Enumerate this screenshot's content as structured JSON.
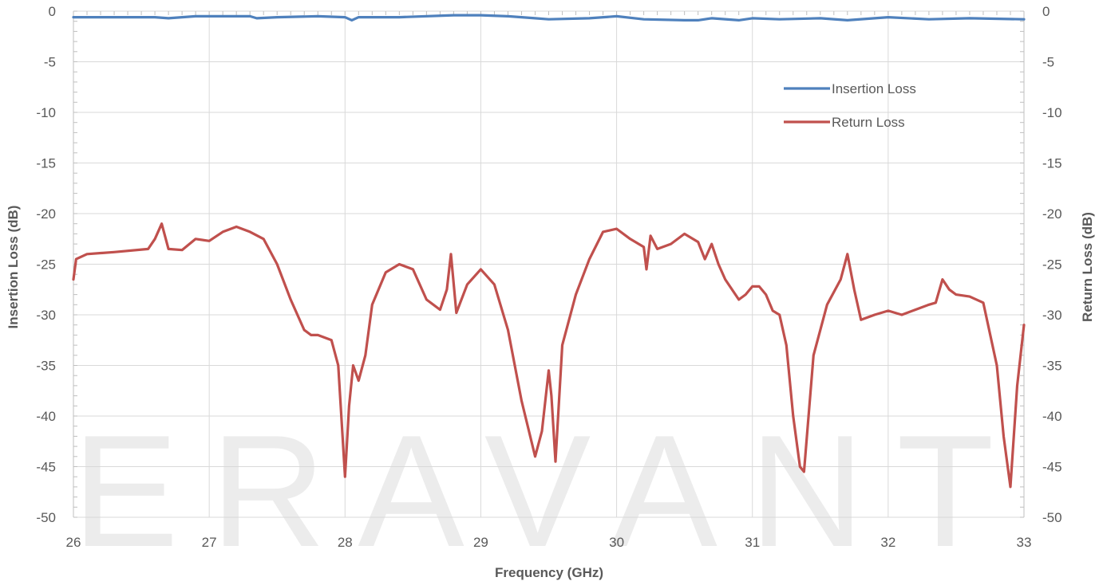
{
  "watermark": "ERAVANT",
  "chart_data": {
    "type": "line",
    "xlabel": "Frequency (GHz)",
    "ylabel_left": "Insertion Loss (dB)",
    "ylabel_right": "Return Loss (dB)",
    "xlim": [
      26,
      33
    ],
    "ylim": [
      -50,
      0
    ],
    "xticks": [
      26,
      27,
      28,
      29,
      30,
      31,
      32,
      33
    ],
    "yticks": [
      0,
      -5,
      -10,
      -15,
      -20,
      -25,
      -30,
      -35,
      -40,
      -45,
      -50
    ],
    "grid": true,
    "legend_position": "top-right",
    "series": [
      {
        "name": "Insertion Loss",
        "color": "#4f81bd",
        "x": [
          26,
          26.3,
          26.6,
          26.7,
          26.9,
          27.2,
          27.3,
          27.35,
          27.5,
          27.8,
          28.0,
          28.05,
          28.1,
          28.4,
          28.8,
          29.0,
          29.2,
          29.4,
          29.5,
          29.8,
          30.0,
          30.2,
          30.5,
          30.6,
          30.7,
          30.9,
          31.0,
          31.2,
          31.5,
          31.7,
          32.0,
          32.3,
          32.6,
          33.0
        ],
        "y": [
          -0.6,
          -0.6,
          -0.6,
          -0.7,
          -0.5,
          -0.5,
          -0.5,
          -0.7,
          -0.6,
          -0.5,
          -0.6,
          -0.9,
          -0.6,
          -0.6,
          -0.4,
          -0.4,
          -0.5,
          -0.7,
          -0.8,
          -0.7,
          -0.5,
          -0.8,
          -0.9,
          -0.9,
          -0.7,
          -0.9,
          -0.7,
          -0.8,
          -0.7,
          -0.9,
          -0.6,
          -0.8,
          -0.7,
          -0.8
        ]
      },
      {
        "name": "Return Loss",
        "color": "#c0504d",
        "x": [
          26,
          26.02,
          26.1,
          26.3,
          26.55,
          26.6,
          26.65,
          26.7,
          26.8,
          26.9,
          27.0,
          27.1,
          27.2,
          27.3,
          27.4,
          27.5,
          27.6,
          27.7,
          27.75,
          27.8,
          27.9,
          27.95,
          28.0,
          28.03,
          28.06,
          28.1,
          28.15,
          28.2,
          28.3,
          28.4,
          28.5,
          28.6,
          28.7,
          28.75,
          28.78,
          28.82,
          28.9,
          29.0,
          29.1,
          29.2,
          29.3,
          29.4,
          29.45,
          29.5,
          29.52,
          29.55,
          29.6,
          29.7,
          29.8,
          29.9,
          30.0,
          30.1,
          30.2,
          30.22,
          30.25,
          30.3,
          30.4,
          30.5,
          30.6,
          30.65,
          30.7,
          30.75,
          30.8,
          30.9,
          30.95,
          31.0,
          31.05,
          31.1,
          31.15,
          31.2,
          31.25,
          31.3,
          31.35,
          31.38,
          31.45,
          31.55,
          31.65,
          31.7,
          31.75,
          31.8,
          31.9,
          32.0,
          32.1,
          32.2,
          32.3,
          32.35,
          32.4,
          32.45,
          32.5,
          32.6,
          32.7,
          32.8,
          32.85,
          32.9,
          32.95,
          33.0
        ],
        "y": [
          -26.5,
          -24.5,
          -24.0,
          -23.8,
          -23.5,
          -22.5,
          -21.0,
          -23.5,
          -23.6,
          -22.5,
          -22.7,
          -21.8,
          -21.3,
          -21.8,
          -22.5,
          -25.0,
          -28.5,
          -31.5,
          -32.0,
          -32.0,
          -32.5,
          -35.0,
          -46.0,
          -39.0,
          -35.0,
          -36.5,
          -34.0,
          -29.0,
          -25.8,
          -25.0,
          -25.5,
          -28.5,
          -29.5,
          -27.5,
          -24.0,
          -29.8,
          -27.0,
          -25.5,
          -27.0,
          -31.5,
          -38.5,
          -44.0,
          -41.5,
          -35.5,
          -38.0,
          -44.5,
          -33.0,
          -28.0,
          -24.5,
          -21.8,
          -21.5,
          -22.5,
          -23.3,
          -25.5,
          -22.2,
          -23.5,
          -23.0,
          -22.0,
          -22.8,
          -24.5,
          -23.0,
          -25.0,
          -26.5,
          -28.5,
          -28.0,
          -27.2,
          -27.2,
          -28.0,
          -29.6,
          -30.0,
          -33.0,
          -40.0,
          -45.0,
          -45.5,
          -34.0,
          -29.0,
          -26.5,
          -24.0,
          -27.5,
          -30.5,
          -30.0,
          -29.6,
          -30.0,
          -29.5,
          -29.0,
          -28.8,
          -26.5,
          -27.5,
          -28.0,
          -28.2,
          -28.8,
          -35.0,
          -42.0,
          -47.0,
          -37.0,
          -31.0
        ]
      }
    ]
  }
}
